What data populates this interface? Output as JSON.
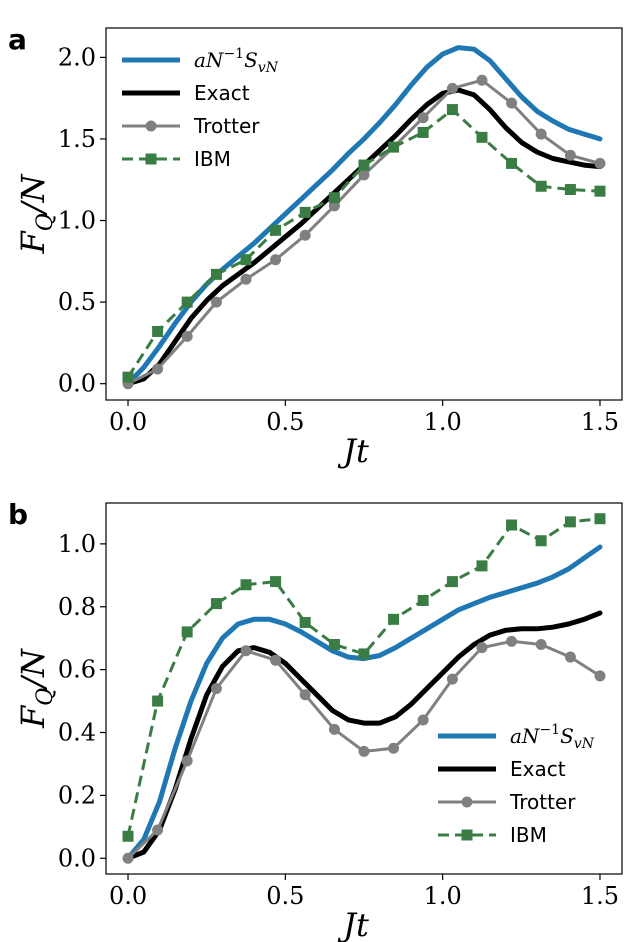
{
  "chart_data": [
    {
      "panel": "a",
      "type": "line",
      "xlabel": "Jt",
      "ylabel": "F_Q/N",
      "xlim": [
        -0.07,
        1.57
      ],
      "ylim": [
        -0.1,
        2.18
      ],
      "xticks": [
        0.0,
        0.5,
        1.0,
        1.5
      ],
      "xtick_labels": [
        "0.0",
        "0.5",
        "1.0",
        "1.5"
      ],
      "yticks": [
        0.0,
        0.5,
        1.0,
        1.5,
        2.0
      ],
      "ytick_labels": [
        "0.0",
        "0.5",
        "1.0",
        "1.5",
        "2.0"
      ],
      "legend_position": "top-left",
      "series": [
        {
          "name": "aN⁻¹S_vN",
          "style": "solid",
          "color": "#1f77b4",
          "width": 5,
          "marker": "none",
          "x": [
            0.0,
            0.05,
            0.1,
            0.15,
            0.2,
            0.25,
            0.3,
            0.35,
            0.4,
            0.45,
            0.5,
            0.55,
            0.6,
            0.65,
            0.7,
            0.75,
            0.8,
            0.85,
            0.9,
            0.95,
            1.0,
            1.05,
            1.1,
            1.15,
            1.2,
            1.25,
            1.3,
            1.35,
            1.4,
            1.45,
            1.5
          ],
          "y": [
            0.0,
            0.1,
            0.23,
            0.37,
            0.5,
            0.61,
            0.7,
            0.78,
            0.86,
            0.95,
            1.04,
            1.13,
            1.22,
            1.31,
            1.41,
            1.5,
            1.6,
            1.71,
            1.83,
            1.94,
            2.02,
            2.06,
            2.05,
            1.98,
            1.87,
            1.76,
            1.67,
            1.61,
            1.56,
            1.53,
            1.5
          ]
        },
        {
          "name": "Exact",
          "style": "solid",
          "color": "#000000",
          "width": 5,
          "marker": "none",
          "x": [
            0.0,
            0.05,
            0.1,
            0.15,
            0.2,
            0.25,
            0.3,
            0.35,
            0.4,
            0.45,
            0.5,
            0.55,
            0.6,
            0.65,
            0.7,
            0.75,
            0.8,
            0.85,
            0.9,
            0.95,
            1.0,
            1.05,
            1.1,
            1.15,
            1.2,
            1.25,
            1.3,
            1.35,
            1.4,
            1.45,
            1.5
          ],
          "y": [
            0.0,
            0.03,
            0.12,
            0.26,
            0.4,
            0.51,
            0.6,
            0.67,
            0.74,
            0.82,
            0.9,
            0.98,
            1.07,
            1.16,
            1.25,
            1.34,
            1.43,
            1.52,
            1.62,
            1.71,
            1.78,
            1.8,
            1.77,
            1.68,
            1.57,
            1.48,
            1.42,
            1.38,
            1.36,
            1.34,
            1.33
          ]
        },
        {
          "name": "Trotter",
          "style": "solid",
          "color": "#808080",
          "width": 3,
          "marker": "circle",
          "x": [
            0.0,
            0.094,
            0.188,
            0.281,
            0.375,
            0.469,
            0.563,
            0.656,
            0.75,
            0.844,
            0.938,
            1.031,
            1.125,
            1.219,
            1.313,
            1.406,
            1.5
          ],
          "y": [
            0.0,
            0.09,
            0.29,
            0.5,
            0.64,
            0.76,
            0.91,
            1.09,
            1.28,
            1.45,
            1.63,
            1.81,
            1.86,
            1.72,
            1.53,
            1.4,
            1.35
          ]
        },
        {
          "name": "IBM",
          "style": "dashed",
          "color": "#3a7d44",
          "width": 3,
          "marker": "square",
          "x": [
            0.0,
            0.094,
            0.188,
            0.281,
            0.375,
            0.469,
            0.563,
            0.656,
            0.75,
            0.844,
            0.938,
            1.031,
            1.125,
            1.219,
            1.313,
            1.406,
            1.5
          ],
          "y": [
            0.04,
            0.32,
            0.5,
            0.67,
            0.76,
            0.94,
            1.05,
            1.14,
            1.34,
            1.45,
            1.54,
            1.68,
            1.51,
            1.35,
            1.21,
            1.19,
            1.18
          ]
        }
      ]
    },
    {
      "panel": "b",
      "type": "line",
      "xlabel": "Jt",
      "ylabel": "F_Q/N",
      "xlim": [
        -0.07,
        1.57
      ],
      "ylim": [
        -0.05,
        1.13
      ],
      "xticks": [
        0.0,
        0.5,
        1.0,
        1.5
      ],
      "xtick_labels": [
        "0.0",
        "0.5",
        "1.0",
        "1.5"
      ],
      "yticks": [
        0.0,
        0.2,
        0.4,
        0.6,
        0.8,
        1.0
      ],
      "ytick_labels": [
        "0.0",
        "0.2",
        "0.4",
        "0.6",
        "0.8",
        "1.0"
      ],
      "legend_position": "bottom-right",
      "series": [
        {
          "name": "aN⁻¹S_vN",
          "style": "solid",
          "color": "#1f77b4",
          "width": 5,
          "marker": "none",
          "x": [
            0.0,
            0.05,
            0.1,
            0.15,
            0.2,
            0.25,
            0.3,
            0.35,
            0.4,
            0.45,
            0.5,
            0.55,
            0.6,
            0.65,
            0.7,
            0.75,
            0.8,
            0.85,
            0.9,
            0.95,
            1.0,
            1.05,
            1.1,
            1.15,
            1.2,
            1.25,
            1.3,
            1.35,
            1.4,
            1.45,
            1.5
          ],
          "y": [
            0.0,
            0.06,
            0.18,
            0.35,
            0.5,
            0.62,
            0.7,
            0.745,
            0.76,
            0.76,
            0.745,
            0.72,
            0.69,
            0.66,
            0.64,
            0.635,
            0.645,
            0.67,
            0.7,
            0.73,
            0.76,
            0.79,
            0.81,
            0.83,
            0.845,
            0.86,
            0.875,
            0.895,
            0.92,
            0.955,
            0.99
          ]
        },
        {
          "name": "Exact",
          "style": "solid",
          "color": "#000000",
          "width": 5,
          "marker": "none",
          "x": [
            0.0,
            0.05,
            0.1,
            0.15,
            0.2,
            0.25,
            0.3,
            0.35,
            0.4,
            0.45,
            0.5,
            0.55,
            0.6,
            0.65,
            0.7,
            0.75,
            0.8,
            0.85,
            0.9,
            0.95,
            1.0,
            1.05,
            1.1,
            1.15,
            1.2,
            1.25,
            1.3,
            1.35,
            1.4,
            1.45,
            1.5
          ],
          "y": [
            0.0,
            0.02,
            0.09,
            0.22,
            0.38,
            0.52,
            0.61,
            0.66,
            0.67,
            0.655,
            0.62,
            0.57,
            0.52,
            0.47,
            0.44,
            0.43,
            0.43,
            0.45,
            0.49,
            0.54,
            0.59,
            0.64,
            0.68,
            0.71,
            0.725,
            0.73,
            0.73,
            0.735,
            0.745,
            0.76,
            0.78
          ]
        },
        {
          "name": "Trotter",
          "style": "solid",
          "color": "#808080",
          "width": 3,
          "marker": "circle",
          "x": [
            0.0,
            0.094,
            0.188,
            0.281,
            0.375,
            0.469,
            0.563,
            0.656,
            0.75,
            0.844,
            0.938,
            1.031,
            1.125,
            1.219,
            1.313,
            1.406,
            1.5
          ],
          "y": [
            0.0,
            0.09,
            0.31,
            0.54,
            0.66,
            0.63,
            0.52,
            0.41,
            0.34,
            0.35,
            0.44,
            0.57,
            0.67,
            0.69,
            0.68,
            0.64,
            0.58
          ]
        },
        {
          "name": "IBM",
          "style": "dashed",
          "color": "#3a7d44",
          "width": 3,
          "marker": "square",
          "x": [
            0.0,
            0.094,
            0.188,
            0.281,
            0.375,
            0.469,
            0.563,
            0.656,
            0.75,
            0.844,
            0.938,
            1.031,
            1.125,
            1.219,
            1.313,
            1.406,
            1.5
          ],
          "y": [
            0.07,
            0.5,
            0.72,
            0.81,
            0.87,
            0.88,
            0.75,
            0.68,
            0.65,
            0.76,
            0.82,
            0.88,
            0.93,
            1.06,
            1.01,
            1.07,
            1.08
          ]
        }
      ]
    }
  ]
}
